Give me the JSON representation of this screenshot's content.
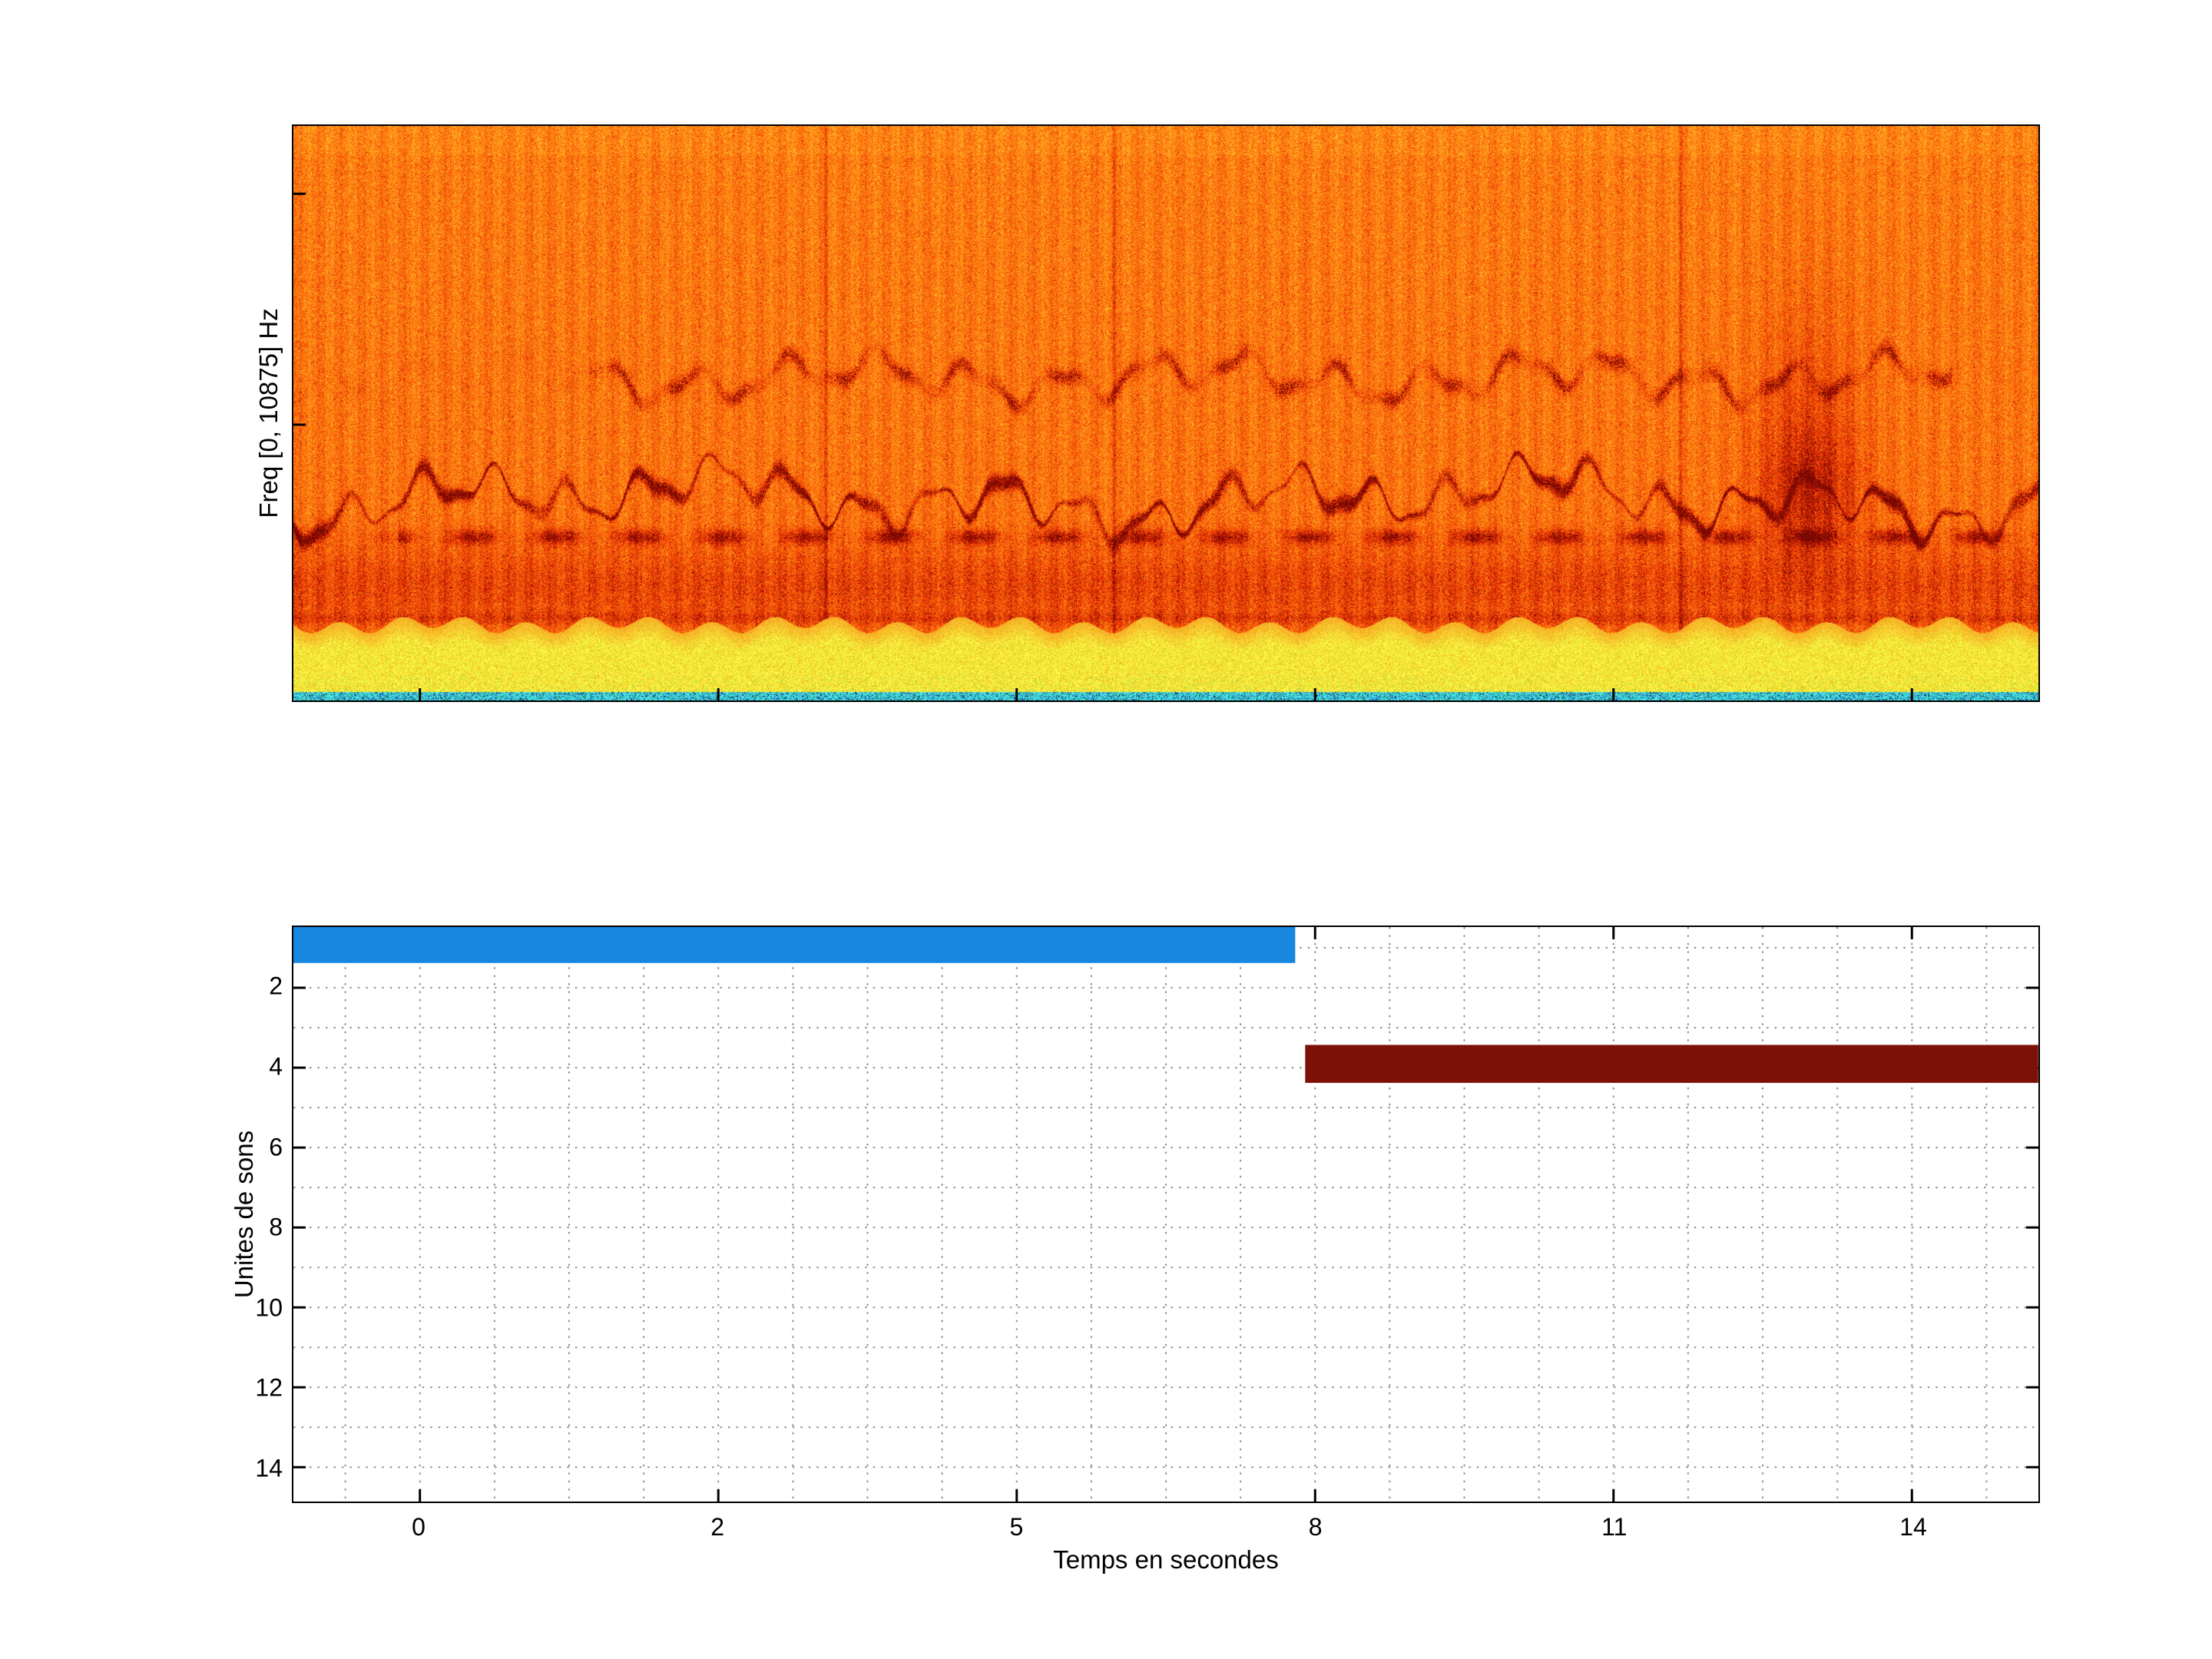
{
  "figure": {
    "background": "#ffffff",
    "top_plot": {
      "ylabel": "Freq [0, 10875] Hz"
    },
    "bottom_plot": {
      "ylabel": "Unites de sons",
      "xlabel": "Temps en secondes"
    }
  },
  "chart_data": [
    {
      "type": "heatmap",
      "subtype": "spectrogram",
      "ylabel": "Freq [0, 10875] Hz",
      "freq_range_hz": [
        0,
        10875
      ],
      "colormap": "jet",
      "description": "Dense orange/red broadband noise; bright yellow low-frequency band along the bottom; thin cyan strip at 0 Hz with dark specks; dark red wavy tonal traces near 44% and 65% of plot height; patchy darker horizontal line near 72%; darker smudge near the right edge",
      "zones": {
        "yellow_band_top_frac": 0.868,
        "cyan_strip_top_frac": 0.9853,
        "trace1_center_frac": 0.652,
        "trace2_center_frac": 0.438,
        "dark_line_frac": 0.715,
        "right_blob_center_x_frac": 0.868
      },
      "palette": {
        "orange": "#fc780f",
        "red": "#e63205",
        "dark_red": "#780802",
        "yellow": "#f8ec22",
        "cyan": "#38d8de"
      },
      "seed": 1337
    },
    {
      "type": "bar",
      "variant": "horizontal-interval",
      "xlabel": "Temps en secondes",
      "ylabel": "Unites de sons",
      "x_ticks": [
        0,
        2,
        5,
        8,
        11,
        14
      ],
      "y_ticks": [
        2,
        4,
        6,
        8,
        10,
        12,
        14
      ],
      "x_range": [
        -0.85,
        15.27
      ],
      "y_range": [
        0.48,
        14.86
      ],
      "grid": "dotted",
      "bars": [
        {
          "name": "unite-1",
          "y_from": 0.48,
          "y_to": 1.38,
          "t_start": -0.85,
          "t_end": 7.8,
          "color": "#1787e0"
        },
        {
          "name": "unite-4",
          "y_from": 3.43,
          "y_to": 4.38,
          "t_start": 7.9,
          "t_end": 15.27,
          "color": "#7d1108"
        }
      ]
    }
  ]
}
